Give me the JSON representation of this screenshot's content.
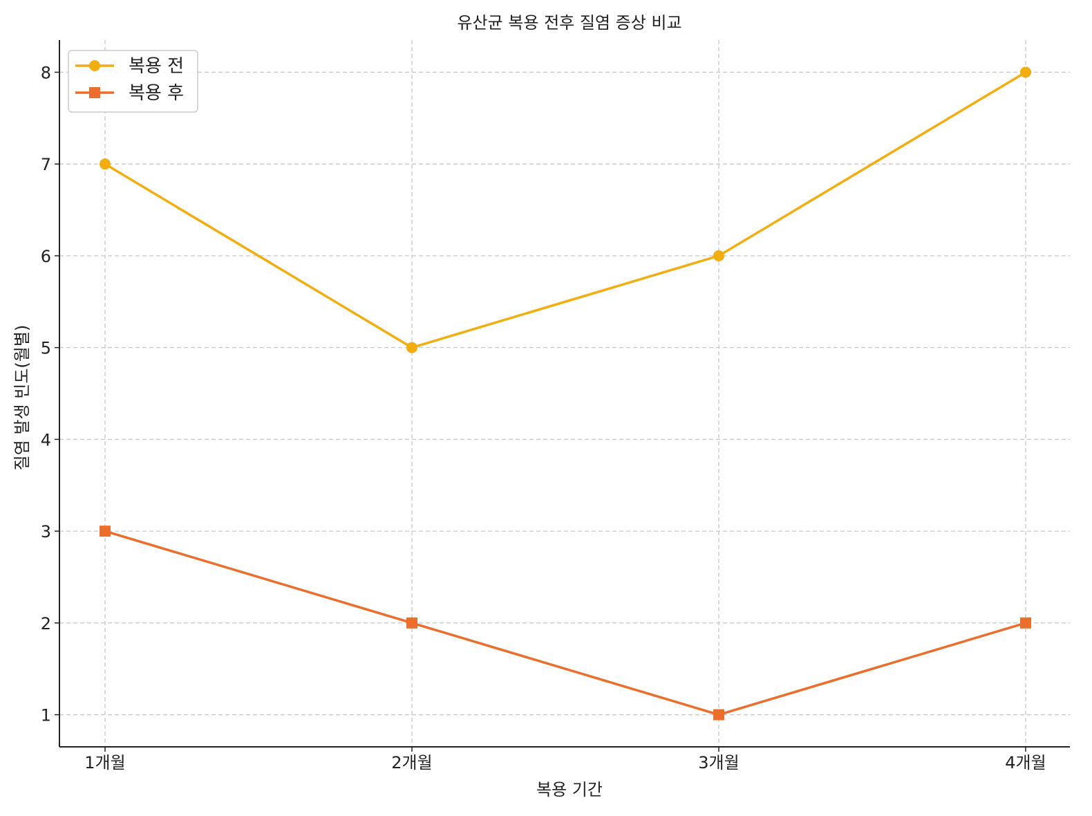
{
  "chart_data": {
    "type": "line",
    "title": "유산균 복용 전후 질염 증상 비교",
    "xlabel": "복용 기간",
    "ylabel": "질염 발생 빈도(월별)",
    "categories": [
      "1개월",
      "2개월",
      "3개월",
      "4개월"
    ],
    "yticks": [
      1,
      2,
      3,
      4,
      5,
      6,
      7,
      8
    ],
    "ylim": [
      0.65,
      8.35
    ],
    "grid": true,
    "legend_position": "top-left",
    "series": [
      {
        "name": "복용 전",
        "values": [
          7,
          5,
          6,
          8
        ],
        "color": "#F2AE10",
        "marker": "circle"
      },
      {
        "name": "복용 후",
        "values": [
          3,
          2,
          1,
          2
        ],
        "color": "#EB6E2C",
        "marker": "square"
      }
    ]
  }
}
